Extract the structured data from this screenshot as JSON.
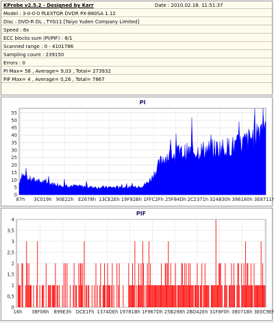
{
  "header": {
    "title": "KProbe v2.5.2 - Designed by Karr",
    "date": "Date : 2010.02.18. 11:51:37"
  },
  "info_lines": [
    "Model : 3-0-0-0 PLEXTOR DVDR   PX-880SA  1.12",
    "Disc : DVD-R DL , TYG11 [Taiyo Yuden Company Limited]",
    "Speed : 8x",
    "ECC blocks sum (PI/PIF) : 8/1",
    "Scanned range : 0 - 4101786",
    "Sampling count : 239150",
    "Errors : 0",
    "PI Max= 58 ,  Average= 9,03 ,  Total= 273932",
    "PIF Max= 4 ,  Average= 0,26 ,  Total= 7867"
  ],
  "chart_data": [
    {
      "type": "area",
      "title": "PI",
      "color": "#0000ff",
      "ylim": [
        0,
        58
      ],
      "yticks": [
        0,
        5,
        10,
        15,
        20,
        25,
        30,
        35,
        40,
        45,
        50,
        55
      ],
      "xtick_labels": [
        "87h",
        "3C019h",
        "90E22h",
        "E2678h",
        "13CE2Eh",
        "19F92Bh",
        "1FFC2Fh",
        "25F84Dh",
        "2C2371h",
        "324B30h",
        "386180h",
        "3E8711h"
      ],
      "profile_x": [
        0,
        0.01,
        0.03,
        0.08,
        0.15,
        0.22,
        0.3,
        0.38,
        0.45,
        0.5,
        0.52,
        0.54,
        0.56,
        0.58,
        0.6,
        0.63,
        0.66,
        0.7,
        0.75,
        0.8,
        0.85,
        0.9,
        0.94,
        0.97,
        1.0
      ],
      "profile_y": [
        8,
        14,
        11,
        9,
        7,
        6,
        5,
        5,
        5,
        6,
        8,
        12,
        18,
        24,
        26,
        27,
        28,
        29,
        30,
        31,
        32,
        34,
        38,
        44,
        50
      ]
    },
    {
      "type": "bar",
      "title": "PIF",
      "color": "#ff0000",
      "ylim": [
        0,
        4
      ],
      "yticks": [
        0,
        0.5,
        1,
        1.5,
        2,
        2.5,
        3,
        3.5,
        4
      ],
      "ytick_labels": [
        "0",
        "0,5",
        "1",
        "1,5",
        "2",
        "2,5",
        "3",
        "3,5",
        "4"
      ],
      "xtick_labels": [
        "16h",
        "38F06h",
        "899E3h",
        "DCE1Fh",
        "1374DEh",
        "19781Bh",
        "1F967Dh",
        "25B298h",
        "2BD42Eh",
        "31F8F0h",
        "38071Bh",
        "3E0C9Eh"
      ],
      "max": 4
    }
  ]
}
